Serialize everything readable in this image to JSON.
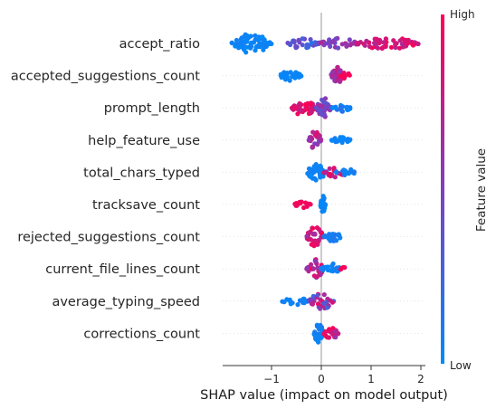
{
  "chart_data": {
    "type": "scatter",
    "subtype": "shap-beeswarm",
    "xlabel": "SHAP value (impact on model output)",
    "xlim": [
      -1.95,
      2.1
    ],
    "xticks": [
      -1,
      0,
      1,
      2
    ],
    "xtick_labels": [
      "−1",
      "0",
      "1",
      "2"
    ],
    "zero_line": true,
    "colorbar": {
      "title": "Feature value",
      "high_label": "High",
      "low_label": "Low",
      "low_color": "#008afb",
      "mid_color": "#7f3fbf",
      "high_color": "#ff0052"
    },
    "features": [
      {
        "name": "accept_ratio",
        "clusters": [
          {
            "range": [
              -1.8,
              -1.0
            ],
            "n": 70,
            "vmin": 0.0,
            "vmax": 0.08,
            "spread": 1.0
          },
          {
            "range": [
              -0.7,
              -0.05
            ],
            "n": 30,
            "vmin": 0.15,
            "vmax": 0.5,
            "spread": 0.55
          },
          {
            "range": [
              -0.05,
              0.75
            ],
            "n": 35,
            "vmin": 0.4,
            "vmax": 0.7,
            "spread": 0.55
          },
          {
            "range": [
              0.7,
              1.95
            ],
            "n": 60,
            "vmin": 0.65,
            "vmax": 1.0,
            "spread": 0.65
          }
        ]
      },
      {
        "name": "accepted_suggestions_count",
        "clusters": [
          {
            "range": [
              -0.85,
              -0.4
            ],
            "n": 35,
            "vmin": 0.0,
            "vmax": 0.06,
            "spread": 0.5
          },
          {
            "range": [
              0.2,
              0.45
            ],
            "n": 35,
            "vmin": 0.55,
            "vmax": 0.85,
            "spread": 0.9
          },
          {
            "range": [
              0.4,
              0.6
            ],
            "n": 10,
            "vmin": 0.9,
            "vmax": 1.0,
            "spread": 0.4
          }
        ]
      },
      {
        "name": "prompt_length",
        "clusters": [
          {
            "range": [
              -0.6,
              -0.1
            ],
            "n": 40,
            "vmin": 0.75,
            "vmax": 1.0,
            "spread": 0.8
          },
          {
            "range": [
              -0.1,
              0.2
            ],
            "n": 40,
            "vmin": 0.35,
            "vmax": 0.7,
            "spread": 1.0
          },
          {
            "range": [
              0.2,
              0.6
            ],
            "n": 20,
            "vmin": 0.0,
            "vmax": 0.15,
            "spread": 0.45
          }
        ]
      },
      {
        "name": "help_feature_use",
        "clusters": [
          {
            "range": [
              -0.25,
              0.0
            ],
            "n": 25,
            "vmin": 0.45,
            "vmax": 0.9,
            "spread": 1.0
          },
          {
            "range": [
              0.2,
              0.6
            ],
            "n": 25,
            "vmin": 0.0,
            "vmax": 0.08,
            "spread": 0.3
          }
        ]
      },
      {
        "name": "total_chars_typed",
        "clusters": [
          {
            "range": [
              -0.3,
              0.1
            ],
            "n": 40,
            "vmin": 0.0,
            "vmax": 0.1,
            "spread": 0.8
          },
          {
            "range": [
              0.05,
              0.5
            ],
            "n": 20,
            "vmin": 0.6,
            "vmax": 1.0,
            "spread": 0.5
          },
          {
            "range": [
              0.3,
              0.75
            ],
            "n": 15,
            "vmin": 0.0,
            "vmax": 0.12,
            "spread": 0.35
          }
        ]
      },
      {
        "name": "tracksave_count",
        "clusters": [
          {
            "range": [
              -0.55,
              -0.2
            ],
            "n": 20,
            "vmin": 0.92,
            "vmax": 1.0,
            "spread": 0.35
          },
          {
            "range": [
              -0.02,
              0.08
            ],
            "n": 25,
            "vmin": 0.0,
            "vmax": 0.08,
            "spread": 0.9
          }
        ]
      },
      {
        "name": "rejected_suggestions_count",
        "clusters": [
          {
            "range": [
              -0.3,
              0.05
            ],
            "n": 40,
            "vmin": 0.6,
            "vmax": 1.0,
            "spread": 1.0
          },
          {
            "range": [
              0.05,
              0.4
            ],
            "n": 25,
            "vmin": 0.0,
            "vmax": 0.15,
            "spread": 0.5
          }
        ]
      },
      {
        "name": "current_file_lines_count",
        "clusters": [
          {
            "range": [
              -0.3,
              0.05
            ],
            "n": 35,
            "vmin": 0.5,
            "vmax": 1.0,
            "spread": 1.0
          },
          {
            "range": [
              0.0,
              0.4
            ],
            "n": 25,
            "vmin": 0.0,
            "vmax": 0.12,
            "spread": 0.55
          },
          {
            "range": [
              0.38,
              0.5
            ],
            "n": 5,
            "vmin": 0.95,
            "vmax": 1.0,
            "spread": 0.2
          }
        ]
      },
      {
        "name": "average_typing_speed",
        "clusters": [
          {
            "range": [
              -0.8,
              -0.2
            ],
            "n": 18,
            "vmin": 0.0,
            "vmax": 0.1,
            "spread": 0.35
          },
          {
            "range": [
              -0.25,
              0.25
            ],
            "n": 35,
            "vmin": 0.2,
            "vmax": 0.9,
            "spread": 0.85
          }
        ]
      },
      {
        "name": "corrections_count",
        "clusters": [
          {
            "range": [
              -0.15,
              0.05
            ],
            "n": 30,
            "vmin": 0.0,
            "vmax": 0.15,
            "spread": 1.0
          },
          {
            "range": [
              0.05,
              0.35
            ],
            "n": 25,
            "vmin": 0.6,
            "vmax": 1.0,
            "spread": 0.6
          }
        ]
      }
    ]
  }
}
